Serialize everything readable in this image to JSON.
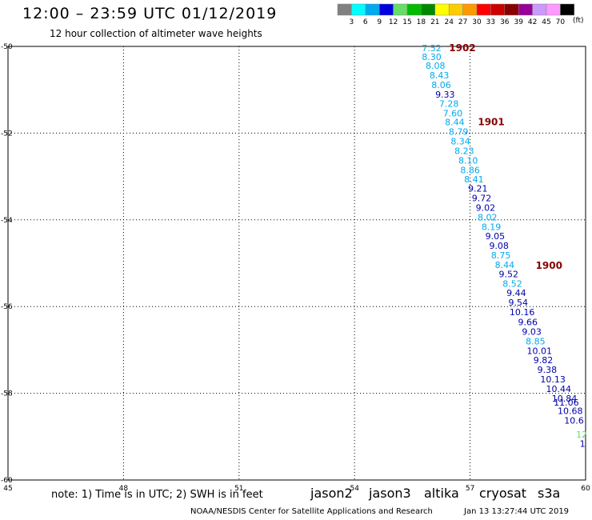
{
  "header": {
    "title": "12:00 – 23:59 UTC 01/12/2019",
    "subtitle": "12 hour collection of altimeter wave heights"
  },
  "color_scale": {
    "unit": "(ft)",
    "bins": [
      {
        "label": "3",
        "color": "#808080"
      },
      {
        "label": "6",
        "color": "#00ffff"
      },
      {
        "label": "9",
        "color": "#00aaee"
      },
      {
        "label": "12",
        "color": "#0000dd"
      },
      {
        "label": "15",
        "color": "#66dd66"
      },
      {
        "label": "18",
        "color": "#00bb00"
      },
      {
        "label": "21",
        "color": "#008800"
      },
      {
        "label": "24",
        "color": "#ffff00"
      },
      {
        "label": "27",
        "color": "#ffcc00"
      },
      {
        "label": "30",
        "color": "#ff9900"
      },
      {
        "label": "33",
        "color": "#ff0000"
      },
      {
        "label": "36",
        "color": "#cc0000"
      },
      {
        "label": "39",
        "color": "#880000"
      },
      {
        "label": "42",
        "color": "#990099"
      },
      {
        "label": "45",
        "color": "#cc99ff"
      },
      {
        "label": "70",
        "color": "#ff99ff"
      },
      {
        "label": "",
        "color": "#000000"
      }
    ]
  },
  "chart_data": {
    "type": "scatter",
    "xlim": [
      45,
      60
    ],
    "ylim": [
      -60,
      -50
    ],
    "x_ticks": [
      45,
      48,
      51,
      54,
      57,
      60
    ],
    "y_ticks": [
      -50,
      -52,
      -54,
      -56,
      -58,
      -60
    ],
    "grid": true,
    "points": [
      {
        "x": 56.0,
        "y": -50.11,
        "label": "7.52",
        "color": "#00aaee"
      },
      {
        "x": 56.0,
        "y": -50.31,
        "label": "8.30",
        "color": "#00aaee"
      },
      {
        "x": 56.1,
        "y": -50.52,
        "label": "8.08",
        "color": "#00aaee"
      },
      {
        "x": 56.2,
        "y": -50.74,
        "label": "8.43",
        "color": "#00aaee"
      },
      {
        "x": 56.25,
        "y": -50.96,
        "label": "8.06",
        "color": "#00aaee"
      },
      {
        "x": 56.35,
        "y": -51.18,
        "label": "9.33",
        "color": "#0000aa"
      },
      {
        "x": 56.45,
        "y": -51.39,
        "label": "7.28",
        "color": "#00aaee"
      },
      {
        "x": 56.55,
        "y": -51.61,
        "label": "7.60",
        "color": "#00aaee"
      },
      {
        "x": 56.6,
        "y": -51.82,
        "label": "8.44",
        "color": "#00aaee"
      },
      {
        "x": 56.7,
        "y": -52.04,
        "label": "8.79",
        "color": "#00aaee"
      },
      {
        "x": 56.75,
        "y": -52.26,
        "label": "8.34",
        "color": "#00aaee"
      },
      {
        "x": 56.85,
        "y": -52.48,
        "label": "8.23",
        "color": "#00aaee"
      },
      {
        "x": 56.95,
        "y": -52.7,
        "label": "8.10",
        "color": "#00aaee"
      },
      {
        "x": 57.0,
        "y": -52.92,
        "label": "8.86",
        "color": "#00aaee"
      },
      {
        "x": 57.1,
        "y": -53.14,
        "label": "8.41",
        "color": "#00aaee"
      },
      {
        "x": 57.2,
        "y": -53.35,
        "label": "9.21",
        "color": "#0000aa"
      },
      {
        "x": 57.3,
        "y": -53.57,
        "label": "9.72",
        "color": "#0000aa"
      },
      {
        "x": 57.4,
        "y": -53.79,
        "label": "9.02",
        "color": "#0000aa"
      },
      {
        "x": 57.45,
        "y": -54.01,
        "label": "8.02",
        "color": "#00aaee"
      },
      {
        "x": 57.55,
        "y": -54.23,
        "label": "8.19",
        "color": "#00aaee"
      },
      {
        "x": 57.65,
        "y": -54.45,
        "label": "9.05",
        "color": "#0000aa"
      },
      {
        "x": 57.75,
        "y": -54.67,
        "label": "9.08",
        "color": "#0000aa"
      },
      {
        "x": 57.8,
        "y": -54.89,
        "label": "8.75",
        "color": "#00aaee"
      },
      {
        "x": 57.9,
        "y": -55.11,
        "label": "8.44",
        "color": "#00aaee"
      },
      {
        "x": 58.0,
        "y": -55.32,
        "label": "9.52",
        "color": "#0000aa"
      },
      {
        "x": 58.1,
        "y": -55.54,
        "label": "8.52",
        "color": "#00aaee"
      },
      {
        "x": 58.2,
        "y": -55.76,
        "label": "9.44",
        "color": "#0000aa"
      },
      {
        "x": 58.25,
        "y": -55.98,
        "label": "9.54",
        "color": "#0000aa"
      },
      {
        "x": 58.35,
        "y": -56.2,
        "label": "10.16",
        "color": "#0000aa"
      },
      {
        "x": 58.5,
        "y": -56.43,
        "label": "9.66",
        "color": "#0000aa"
      },
      {
        "x": 58.6,
        "y": -56.65,
        "label": "9.03",
        "color": "#0000aa"
      },
      {
        "x": 58.7,
        "y": -56.87,
        "label": "8.85",
        "color": "#00aaee"
      },
      {
        "x": 58.8,
        "y": -57.09,
        "label": "10.01",
        "color": "#0000aa"
      },
      {
        "x": 58.9,
        "y": -57.31,
        "label": "9.82",
        "color": "#0000aa"
      },
      {
        "x": 59.0,
        "y": -57.53,
        "label": "9.38",
        "color": "#0000aa"
      },
      {
        "x": 59.15,
        "y": -57.75,
        "label": "10.13",
        "color": "#0000aa"
      },
      {
        "x": 59.3,
        "y": -57.97,
        "label": "10.44",
        "color": "#0000aa"
      },
      {
        "x": 59.45,
        "y": -58.19,
        "label": "10.84",
        "color": "#0000aa"
      },
      {
        "x": 59.5,
        "y": -58.28,
        "label": "11.06",
        "color": "#0000aa"
      },
      {
        "x": 59.6,
        "y": -58.48,
        "label": "10.68",
        "color": "#0000aa"
      },
      {
        "x": 59.7,
        "y": -58.7,
        "label": "10.6",
        "color": "#0000aa"
      },
      {
        "x": 59.9,
        "y": -59.02,
        "label": "12",
        "color": "#66dd66"
      },
      {
        "x": 59.92,
        "y": -59.23,
        "label": "1",
        "color": "#0000aa"
      }
    ],
    "time_annotations": [
      {
        "x": 56.8,
        "y": -50.11,
        "label": "1902",
        "color": "#880000"
      },
      {
        "x": 57.55,
        "y": -51.82,
        "label": "1901",
        "color": "#880000"
      },
      {
        "x": 59.05,
        "y": -55.13,
        "label": "1900",
        "color": "#880000"
      }
    ]
  },
  "footer": {
    "note": "note:  1) Time is in UTC;  2) SWH is in feet",
    "satellites": [
      {
        "name": "jason2",
        "color": "#1515cc"
      },
      {
        "name": "jason3",
        "color": "#119911"
      },
      {
        "name": "altika",
        "color": "#ff8800"
      },
      {
        "name": "cryosat",
        "color": "#cc0000"
      },
      {
        "name": "s3a",
        "color": "#990000"
      }
    ],
    "credit": "NOAA/NESDIS Center for Satellite Applications and Research",
    "timestamp": "Jan 13 13:27:44 UTC 2019"
  }
}
